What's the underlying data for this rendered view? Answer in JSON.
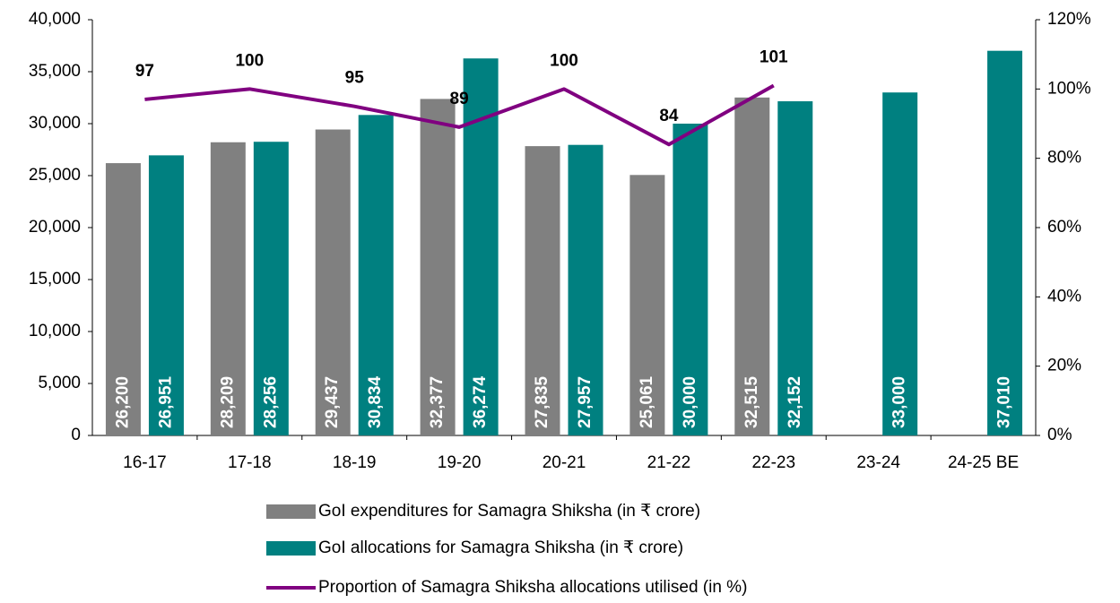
{
  "chart_data": {
    "type": "bar",
    "categories": [
      "16-17",
      "17-18",
      "18-19",
      "19-20",
      "20-21",
      "21-22",
      "22-23",
      "23-24",
      "24-25 BE"
    ],
    "series": [
      {
        "name": "GoI expenditures for Samagra Shiksha (in ₹ crore)",
        "color": "#808080",
        "type": "bar",
        "values": [
          26200,
          28209,
          29437,
          32377,
          27835,
          25061,
          32515,
          null,
          null
        ],
        "value_labels": [
          "26,200",
          "28,209",
          "29,437",
          "32,377",
          "27,835",
          "25,061",
          "32,515",
          null,
          null
        ]
      },
      {
        "name": "GoI allocations for Samagra Shiksha (in ₹ crore)",
        "color": "#008080",
        "type": "bar",
        "values": [
          26951,
          28256,
          30834,
          36274,
          27957,
          30000,
          32152,
          33000,
          37010
        ],
        "value_labels": [
          "26,951",
          "28,256",
          "30,834",
          "36,274",
          "27,957",
          "30,000",
          "32,152",
          "33,000",
          "37,010"
        ]
      },
      {
        "name": "Proportion of Samagra Shiksha allocations utilised (in %)",
        "color": "#800080",
        "type": "line",
        "axis": "y2",
        "values": [
          97,
          100,
          95,
          89,
          100,
          84,
          101,
          null,
          null
        ]
      }
    ],
    "ylim": [
      0,
      40000
    ],
    "yticks": [
      0,
      {
        "value": 5000,
        "label": "5,000"
      },
      {
        "value": 10000,
        "label": "10,000"
      },
      {
        "value": 15000,
        "label": "15,000"
      },
      {
        "value": 20000,
        "label": "20,000"
      },
      {
        "value": 25000,
        "label": "25,000"
      },
      {
        "value": 30000,
        "label": "30,000"
      },
      {
        "value": 35000,
        "label": "35,000"
      },
      {
        "value": 40000,
        "label": "40,000"
      }
    ],
    "y2lim": [
      0,
      120
    ],
    "y2ticks": [
      {
        "value": 0,
        "label": "0%"
      },
      {
        "value": 20,
        "label": "20%"
      },
      {
        "value": 40,
        "label": "40%"
      },
      {
        "value": 60,
        "label": "60%"
      },
      {
        "value": 80,
        "label": "80%"
      },
      {
        "value": 100,
        "label": "100%"
      },
      {
        "value": 120,
        "label": "120%"
      }
    ],
    "legend": "bottom"
  }
}
